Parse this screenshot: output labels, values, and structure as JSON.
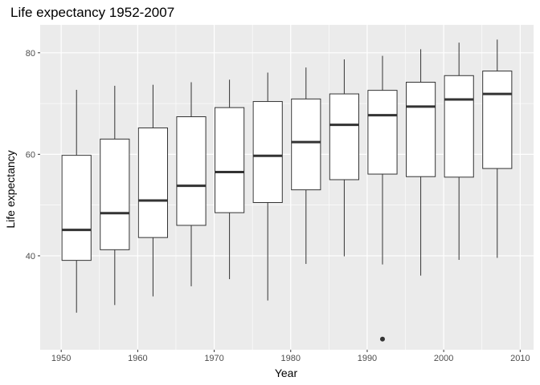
{
  "chart_data": {
    "type": "boxplot",
    "title": "Life expectancy 1952-2007",
    "xlabel": "Year",
    "ylabel": "Life expectancy",
    "xlim": [
      1947.25,
      2011.75
    ],
    "ylim": [
      21.5,
      85.5
    ],
    "x_ticks": [
      1950,
      1960,
      1970,
      1980,
      1990,
      2000,
      2010
    ],
    "y_ticks": [
      40,
      60,
      80
    ],
    "grid": true,
    "panel_background": "#EBEBEB",
    "grid_color": "#FFFFFF",
    "box_fill": "#FFFFFF",
    "line_color": "#333333",
    "box_width_years": 3.8,
    "boxes": [
      {
        "x": 1952,
        "lower_whisker": 28.8,
        "q1": 39.1,
        "median": 45.1,
        "q3": 59.8,
        "upper_whisker": 72.7,
        "outliers": []
      },
      {
        "x": 1957,
        "lower_whisker": 30.3,
        "q1": 41.2,
        "median": 48.4,
        "q3": 63.0,
        "upper_whisker": 73.5,
        "outliers": []
      },
      {
        "x": 1962,
        "lower_whisker": 32.0,
        "q1": 43.6,
        "median": 50.9,
        "q3": 65.2,
        "upper_whisker": 73.7,
        "outliers": []
      },
      {
        "x": 1967,
        "lower_whisker": 34.0,
        "q1": 46.0,
        "median": 53.8,
        "q3": 67.4,
        "upper_whisker": 74.2,
        "outliers": []
      },
      {
        "x": 1972,
        "lower_whisker": 35.4,
        "q1": 48.5,
        "median": 56.5,
        "q3": 69.2,
        "upper_whisker": 74.7,
        "outliers": []
      },
      {
        "x": 1977,
        "lower_whisker": 31.2,
        "q1": 50.5,
        "median": 59.7,
        "q3": 70.4,
        "upper_whisker": 76.1,
        "outliers": []
      },
      {
        "x": 1982,
        "lower_whisker": 38.4,
        "q1": 53.0,
        "median": 62.4,
        "q3": 70.9,
        "upper_whisker": 77.1,
        "outliers": []
      },
      {
        "x": 1987,
        "lower_whisker": 39.9,
        "q1": 55.0,
        "median": 65.8,
        "q3": 71.9,
        "upper_whisker": 78.7,
        "outliers": []
      },
      {
        "x": 1992,
        "lower_whisker": 38.3,
        "q1": 56.1,
        "median": 67.7,
        "q3": 72.6,
        "upper_whisker": 79.4,
        "outliers": [
          23.6
        ]
      },
      {
        "x": 1997,
        "lower_whisker": 36.1,
        "q1": 55.6,
        "median": 69.4,
        "q3": 74.2,
        "upper_whisker": 80.7,
        "outliers": []
      },
      {
        "x": 2002,
        "lower_whisker": 39.2,
        "q1": 55.5,
        "median": 70.8,
        "q3": 75.5,
        "upper_whisker": 82.0,
        "outliers": []
      },
      {
        "x": 2007,
        "lower_whisker": 39.6,
        "q1": 57.2,
        "median": 71.9,
        "q3": 76.4,
        "upper_whisker": 82.6,
        "outliers": []
      }
    ]
  }
}
